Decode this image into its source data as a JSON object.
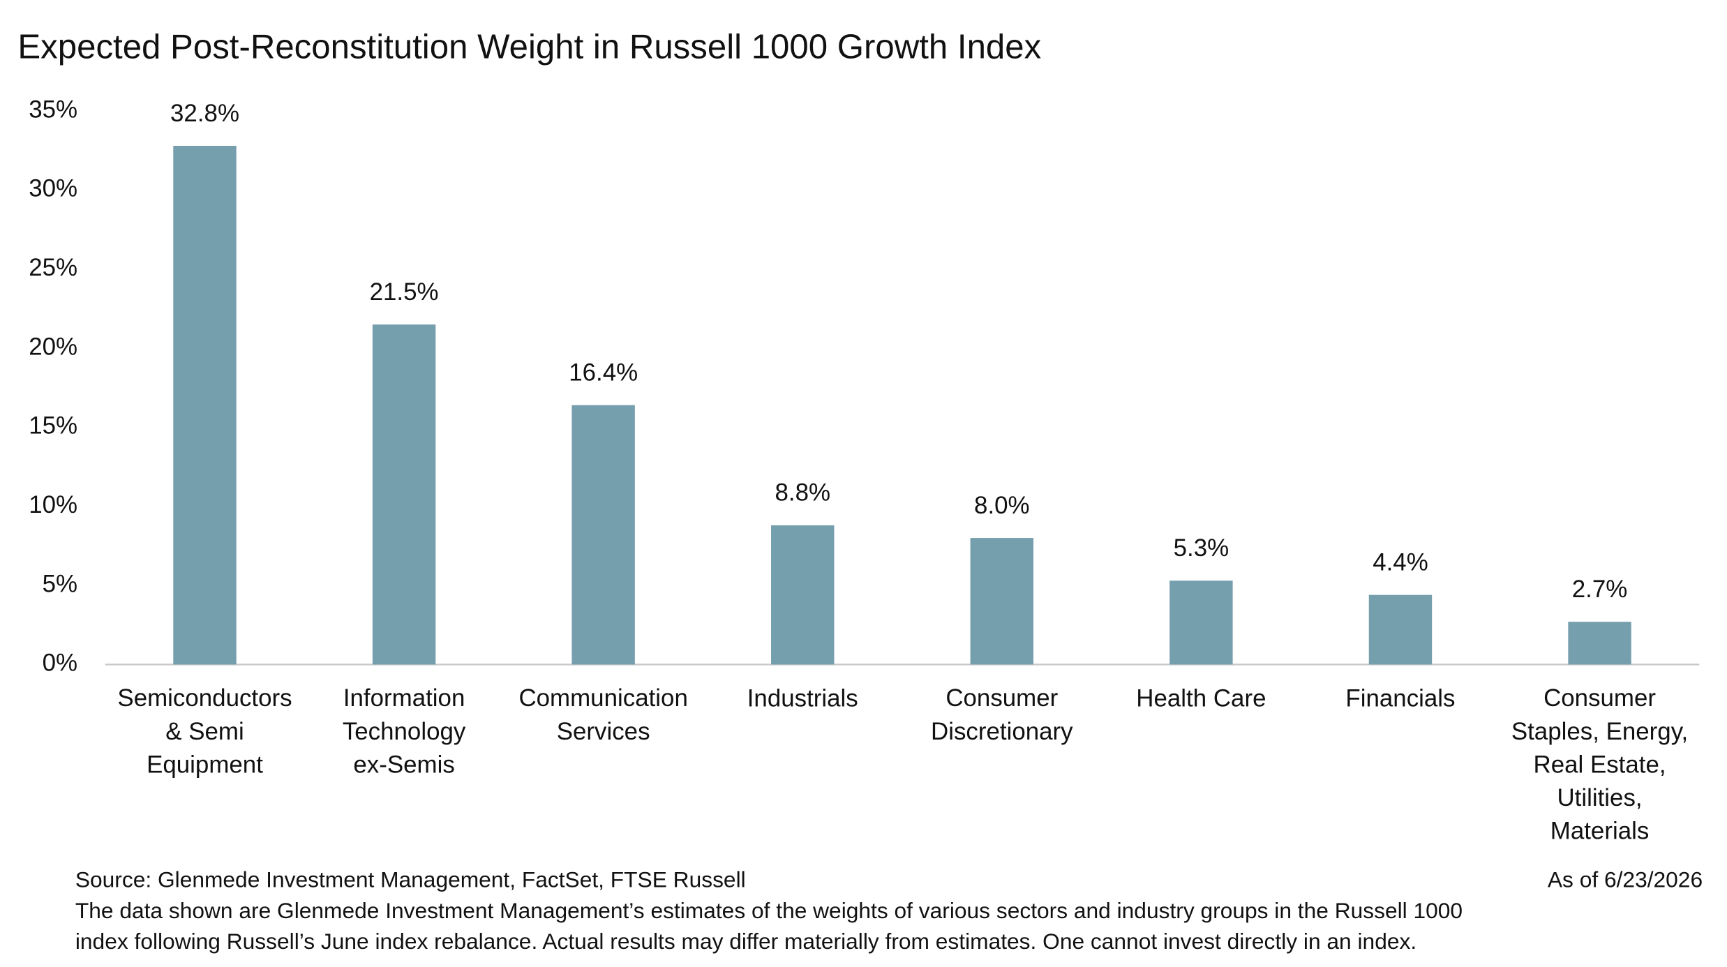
{
  "chart_data": {
    "type": "bar",
    "title": "Expected Post-Reconstitution Weight in Russell 1000 Growth Index",
    "categories": [
      "Semiconductors\n& Semi\nEquipment",
      "Information\nTechnology\nex-Semis",
      "Communication\nServices",
      "Industrials",
      "Consumer\nDiscretionary",
      "Health Care",
      "Financials",
      "Consumer\nStaples, Energy,\nReal Estate,\nUtilities,\nMaterials"
    ],
    "values": [
      32.8,
      21.5,
      16.4,
      8.8,
      8.0,
      5.3,
      4.4,
      2.7
    ],
    "value_labels": [
      "32.8%",
      "21.5%",
      "16.4%",
      "8.8%",
      "8.0%",
      "5.3%",
      "4.4%",
      "2.7%"
    ],
    "color": "#769fae",
    "ylim": [
      0,
      35
    ],
    "yticks": [
      {
        "value": 0,
        "label": "0%"
      },
      {
        "value": 5,
        "label": "5%"
      },
      {
        "value": 10,
        "label": "10%"
      },
      {
        "value": 15,
        "label": "15%"
      },
      {
        "value": 20,
        "label": "20%"
      },
      {
        "value": 25,
        "label": "25%"
      },
      {
        "value": 30,
        "label": "30%"
      },
      {
        "value": 35,
        "label": "35%"
      }
    ],
    "grid": false,
    "source": "Source: Glenmede Investment Management, FactSet, FTSE Russell",
    "as_of": "As of 6/23/2026",
    "note": "The data shown are Glenmede Investment Management’s estimates of the weights of various sectors and industry groups in the Russell 1000\nindex following Russell’s June index rebalance. Actual results may differ materially from estimates. One cannot invest directly in an index."
  }
}
